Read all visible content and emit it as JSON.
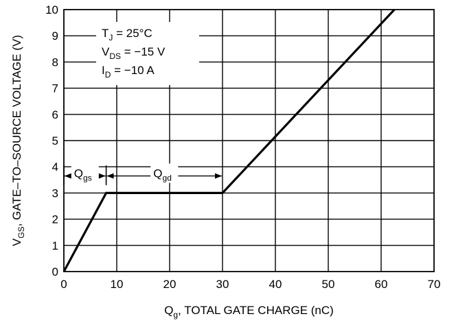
{
  "chart_data": {
    "type": "line",
    "xlabel": {
      "main": "Q",
      "sub": "g",
      "rest": ", TOTAL GATE CHARGE (nC)"
    },
    "ylabel": {
      "main": "V",
      "sub": "GS",
      "rest": ", GATE–TO–SOURCE VOLTAGE (V)"
    },
    "xlim": [
      0,
      70
    ],
    "ylim": [
      0,
      10
    ],
    "xticks": [
      0,
      10,
      20,
      30,
      40,
      50,
      60,
      70
    ],
    "yticks": [
      0,
      1,
      2,
      3,
      4,
      5,
      6,
      7,
      8,
      9,
      10
    ],
    "grid": true,
    "series": [
      {
        "x": [
          0,
          8,
          30,
          62.5
        ],
        "y": [
          0,
          3,
          3,
          10
        ]
      }
    ],
    "conditions": [
      {
        "main": "T",
        "sub": "J",
        "rest": " = 25°C"
      },
      {
        "main": "V",
        "sub": "DS",
        "rest": " = −15 V"
      },
      {
        "main": "I",
        "sub": "D",
        "rest": " = −10 A"
      }
    ],
    "annotations": [
      {
        "main": "Q",
        "sub": "gs",
        "from": 0,
        "to": 8,
        "y": 3.65
      },
      {
        "main": "Q",
        "sub": "gd",
        "from": 8,
        "to": 30,
        "y": 3.65
      }
    ]
  }
}
